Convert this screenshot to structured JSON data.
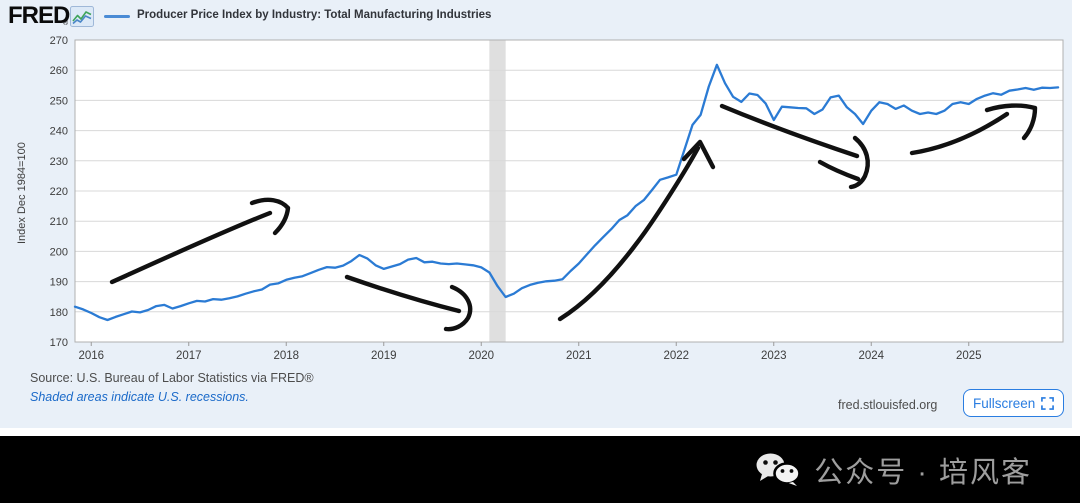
{
  "header": {
    "logo": "FRED",
    "registered": "®",
    "title": "Producer Price Index by Industry: Total Manufacturing Industries"
  },
  "chart_data": {
    "type": "line",
    "title": "Producer Price Index by Industry: Total Manufacturing Industries",
    "xlabel": "",
    "ylabel": "Index Dec 1984=100",
    "ylim": [
      170,
      270
    ],
    "y_ticks": [
      170,
      180,
      190,
      200,
      210,
      220,
      230,
      240,
      250,
      260,
      270
    ],
    "x_tick_labels": [
      "2016",
      "2017",
      "2018",
      "2019",
      "2020",
      "2021",
      "2022",
      "2023",
      "2024",
      "2025"
    ],
    "grid": true,
    "legend_position": "top-left",
    "line_color": "#2b7bd4",
    "grid_color": "#d8d8d8",
    "recession_band_color": "#d9d9d9",
    "series": [
      {
        "name": "Producer Price Index by Industry: Total Manufacturing Industries",
        "color": "#2b7bd4",
        "start": "2015-11",
        "frequency": "monthly",
        "values": [
          181.7,
          180.8,
          179.6,
          178.2,
          177.3,
          178.3,
          179.2,
          180.1,
          179.8,
          180.6,
          181.9,
          182.3,
          181.1,
          181.9,
          182.8,
          183.6,
          183.4,
          184.2,
          184.0,
          184.5,
          185.1,
          186.0,
          186.8,
          187.4,
          189.0,
          189.4,
          190.6,
          191.3,
          191.8,
          192.8,
          193.9,
          194.8,
          194.6,
          195.3,
          196.8,
          198.8,
          197.6,
          195.4,
          194.2,
          195.0,
          195.8,
          197.3,
          197.8,
          196.4,
          196.6,
          196.0,
          195.8,
          196.0,
          195.7,
          195.4,
          194.7,
          193.0,
          188.5,
          184.9,
          186.0,
          187.8,
          188.9,
          189.6,
          190.1,
          190.3,
          190.8,
          193.5,
          196.0,
          199.0,
          202.0,
          204.7,
          207.4,
          210.4,
          212.0,
          215.0,
          217.0,
          220.3,
          223.7,
          224.5,
          225.4,
          233.6,
          241.9,
          245.2,
          254.6,
          261.8,
          255.7,
          251.2,
          249.5,
          252.3,
          251.8,
          249.0,
          243.5,
          247.9,
          247.7,
          247.5,
          247.4,
          245.5,
          247.0,
          251.0,
          251.6,
          247.7,
          245.5,
          242.2,
          246.6,
          249.4,
          248.8,
          247.2,
          248.3,
          246.6,
          245.5,
          246.0,
          245.5,
          246.6,
          248.8,
          249.4,
          248.8,
          250.5,
          251.6,
          252.4,
          251.9,
          253.2,
          253.6,
          254.1,
          253.5,
          254.2,
          254.1,
          254.3
        ]
      }
    ],
    "recessions": [
      {
        "label": "COVID-19 recession",
        "start": "2020-02",
        "end": "2020-04"
      }
    ],
    "annotations": {
      "color": "#111111",
      "arrows": [
        {
          "name": "rise-2016-2018",
          "paths": [
            "M112,282 C152,264 224,231 270,213",
            "M252,203 C268,197 281,200 288,208 C287,218 281,227 275,233"
          ]
        },
        {
          "name": "decline-2018-2019",
          "paths": [
            "M347,277 C390,292 431,304 459,311",
            "M452,287 C467,293 474,306 468,318 C463,326 454,330 446,329"
          ]
        },
        {
          "name": "surge-2020-2022",
          "paths": [
            "M560,319 C592,299 622,264 645,232 C662,208 686,170 698,148",
            "M684,159 L700,142 L713,167"
          ]
        },
        {
          "name": "decline-2022-2024",
          "paths": [
            "M722,106 C770,126 818,143 857,156",
            "M855,138 C867,148 871,162 865,176 C862,182 857,186 851,187",
            "M820,162 C834,170 847,175 858,179"
          ]
        },
        {
          "name": "rise-2024-2025",
          "paths": [
            "M912,153 C944,148 977,134 1007,114",
            "M987,110 C1003,105 1021,104 1035,108 C1035,119 1031,130 1024,138"
          ]
        }
      ]
    }
  },
  "footer": {
    "source": "Source: U.S. Bureau of Labor Statistics via FRED®",
    "recession_note": "Shaded areas indicate U.S. recessions.",
    "site": "fred.stlouisfed.org",
    "fullscreen_label": "Fullscreen"
  },
  "watermark": {
    "text": "公众号 · 培风客"
  }
}
